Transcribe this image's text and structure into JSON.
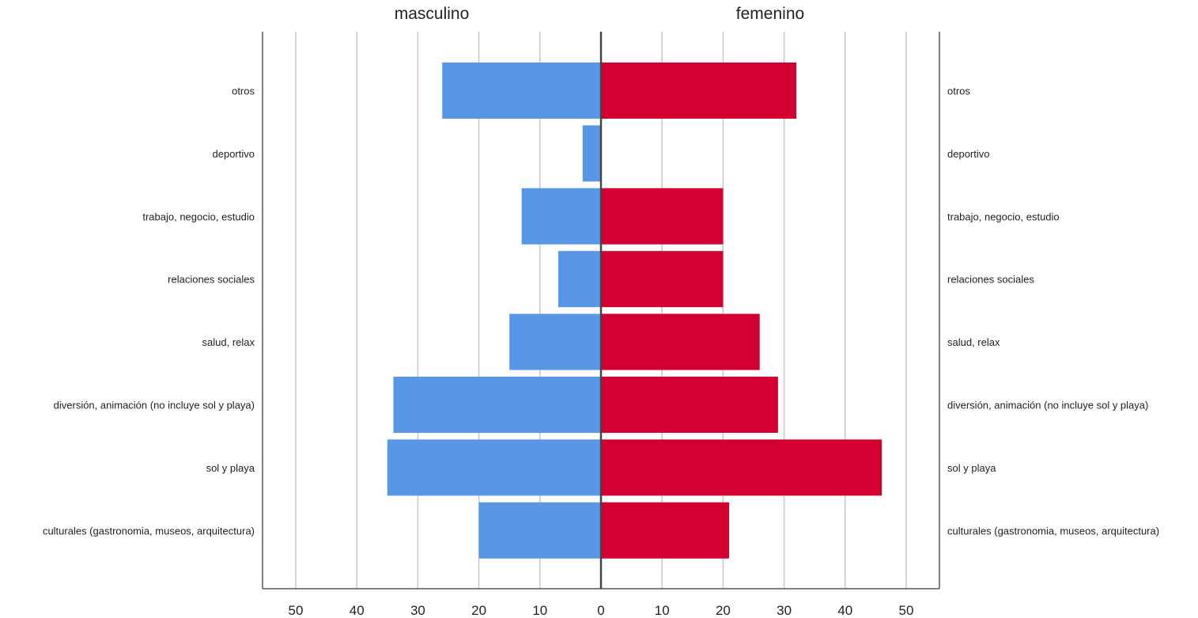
{
  "chart_data": {
    "type": "bar",
    "subtype": "population-pyramid",
    "categories": [
      "otros",
      "deportivo",
      "trabajo, negocio, estudio",
      "relaciones sociales",
      "salud, relax",
      "diversión, animación (no incluye sol y playa)",
      "sol y playa",
      "culturales (gastronomia, museos, arquitectura)"
    ],
    "series": [
      {
        "name": "masculino",
        "side": "left",
        "color": "#5797e6",
        "values": [
          26,
          3,
          13,
          7,
          15,
          34,
          35,
          20
        ]
      },
      {
        "name": "femenino",
        "side": "right",
        "color": "#d50032",
        "values": [
          32,
          0,
          20,
          20,
          26,
          29,
          46,
          21
        ]
      }
    ],
    "xlim": [
      0,
      50
    ],
    "x_ticks": [
      0,
      10,
      20,
      30,
      40,
      50
    ],
    "x_tick_labels": [
      "0",
      "10",
      "20",
      "30",
      "40",
      "50"
    ],
    "grid": "vertical",
    "xlabel": "",
    "ylabel": "",
    "title": ""
  }
}
